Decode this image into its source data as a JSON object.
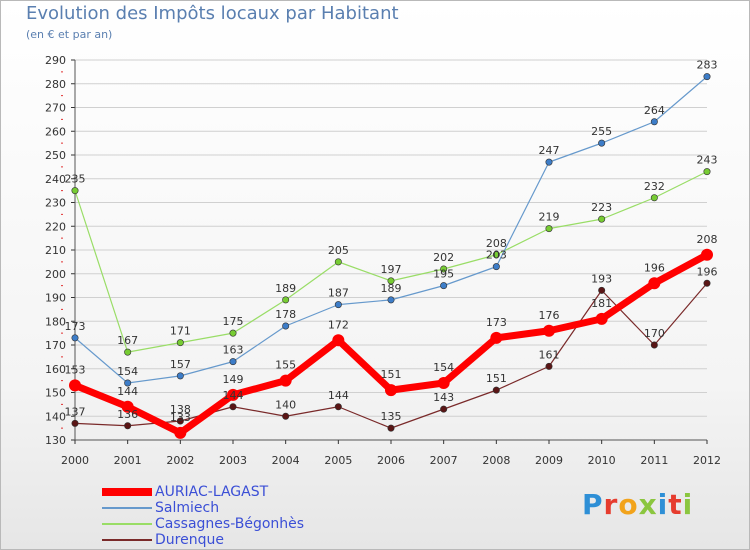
{
  "header": {
    "title": "Evolution des Impôts locaux par Habitant",
    "subtitle": "(en € et par an)"
  },
  "logo": {
    "text": "Proxiti"
  },
  "colors": {
    "title": "#5a7fb0",
    "legend_text": "#3b4fd6",
    "axis": "#333333",
    "grid_accent": "#e03030"
  },
  "chart_data": {
    "type": "line",
    "title": "Evolution des Impôts locaux par Habitant",
    "subtitle": "(en € et par an)",
    "xlabel": "",
    "ylabel": "",
    "ylim": [
      130,
      290
    ],
    "yticks": [
      130,
      140,
      150,
      160,
      170,
      180,
      190,
      200,
      210,
      220,
      230,
      240,
      250,
      260,
      270,
      280,
      290
    ],
    "categories": [
      "2000",
      "2001",
      "2002",
      "2003",
      "2004",
      "2005",
      "2006",
      "2007",
      "2008",
      "2009",
      "2010",
      "2011",
      "2012"
    ],
    "legend_position": "bottom-left",
    "series": [
      {
        "name": "AURIAC-LAGAST",
        "color": "#ff0000",
        "marker": "#ff0000",
        "values": [
          153,
          144,
          133,
          149,
          155,
          172,
          151,
          154,
          173,
          176,
          181,
          196,
          208
        ]
      },
      {
        "name": "Salmiech",
        "color": "#6699cc",
        "marker": "#3d7dc8",
        "values": [
          173,
          154,
          157,
          163,
          178,
          187,
          189,
          195,
          203,
          247,
          255,
          264,
          283
        ]
      },
      {
        "name": "Cassagnes-Bégonhès",
        "color": "#99dd66",
        "marker": "#77cc33",
        "values": [
          235,
          167,
          171,
          175,
          189,
          205,
          197,
          202,
          208,
          219,
          223,
          232,
          243
        ]
      },
      {
        "name": "Durenque",
        "color": "#7a2a2a",
        "marker": "#5a1515",
        "values": [
          137,
          136,
          138,
          144,
          140,
          144,
          135,
          143,
          151,
          161,
          193,
          170,
          196
        ]
      }
    ]
  }
}
